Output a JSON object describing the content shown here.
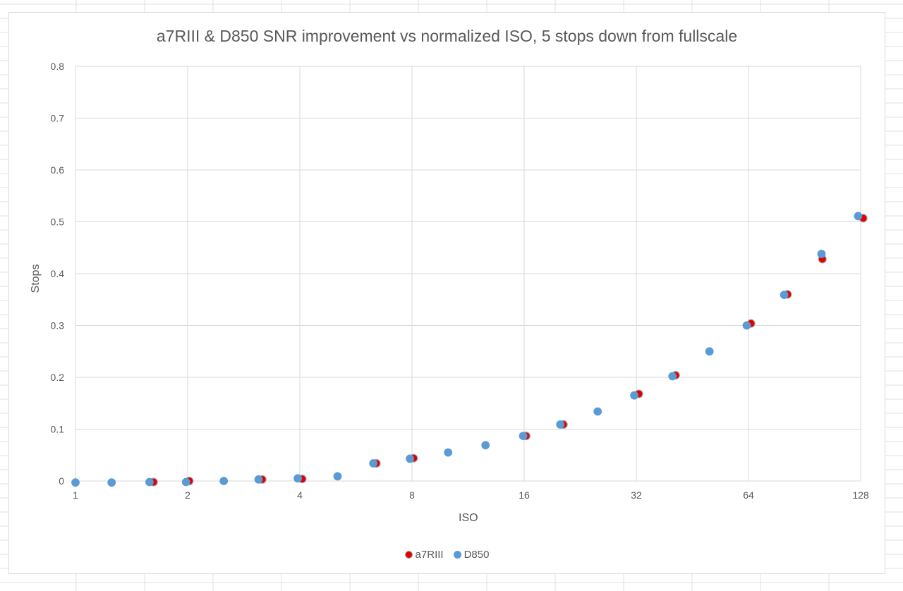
{
  "chart_data": {
    "type": "scatter",
    "title": "a7RIII & D850 SNR improvement vs normalized ISO, 5 stops down from fullscale",
    "xlabel": "ISO",
    "ylabel": "Stops",
    "x_scale": "log2",
    "xlim": [
      1,
      128
    ],
    "ylim": [
      0,
      0.8
    ],
    "x_ticks": [
      {
        "value": 1,
        "label": "1"
      },
      {
        "value": 2,
        "label": "2"
      },
      {
        "value": 4,
        "label": "4"
      },
      {
        "value": 8,
        "label": "8"
      },
      {
        "value": 16,
        "label": "16"
      },
      {
        "value": 32,
        "label": "32"
      },
      {
        "value": 64,
        "label": "64"
      },
      {
        "value": 128,
        "label": "128"
      }
    ],
    "y_ticks": [
      {
        "value": 0,
        "label": "0"
      },
      {
        "value": 0.1,
        "label": "0.1"
      },
      {
        "value": 0.2,
        "label": "0.2"
      },
      {
        "value": 0.3,
        "label": "0.3"
      },
      {
        "value": 0.4,
        "label": "0.4"
      },
      {
        "value": 0.5,
        "label": "0.5"
      },
      {
        "value": 0.6,
        "label": "0.6"
      },
      {
        "value": 0.7,
        "label": "0.7"
      },
      {
        "value": 0.8,
        "label": "0.8"
      }
    ],
    "grid": true,
    "legend_position": "bottom",
    "series": [
      {
        "name": "a7RIII",
        "color": "#e00000",
        "edge_color": "#a6a6a6",
        "points": [
          [
            1.62,
            -0.002
          ],
          [
            2.02,
            0.0
          ],
          [
            3.17,
            0.003
          ],
          [
            4.06,
            0.004
          ],
          [
            6.42,
            0.034
          ],
          [
            8.08,
            0.044
          ],
          [
            16.2,
            0.087
          ],
          [
            20.4,
            0.109
          ],
          [
            32.5,
            0.168
          ],
          [
            40.8,
            0.204
          ],
          [
            65.0,
            0.304
          ],
          [
            81.5,
            0.36
          ],
          [
            101.0,
            0.428
          ],
          [
            130.0,
            0.507
          ]
        ]
      },
      {
        "name": "D850",
        "color": "#5b9bd5",
        "edge_color": "#5b9bd5",
        "points": [
          [
            1.0,
            -0.003
          ],
          [
            1.25,
            -0.003
          ],
          [
            1.58,
            -0.002
          ],
          [
            1.98,
            -0.002
          ],
          [
            2.5,
            0.0
          ],
          [
            3.1,
            0.003
          ],
          [
            3.95,
            0.005
          ],
          [
            5.05,
            0.009
          ],
          [
            6.3,
            0.034
          ],
          [
            7.9,
            0.043
          ],
          [
            10.0,
            0.055
          ],
          [
            12.6,
            0.069
          ],
          [
            15.9,
            0.087
          ],
          [
            20.0,
            0.109
          ],
          [
            25.2,
            0.134
          ],
          [
            31.6,
            0.165
          ],
          [
            40.0,
            0.202
          ],
          [
            50.3,
            0.25
          ],
          [
            63.3,
            0.3
          ],
          [
            79.8,
            0.359
          ],
          [
            100.5,
            0.438
          ],
          [
            126.0,
            0.511
          ]
        ]
      }
    ]
  }
}
